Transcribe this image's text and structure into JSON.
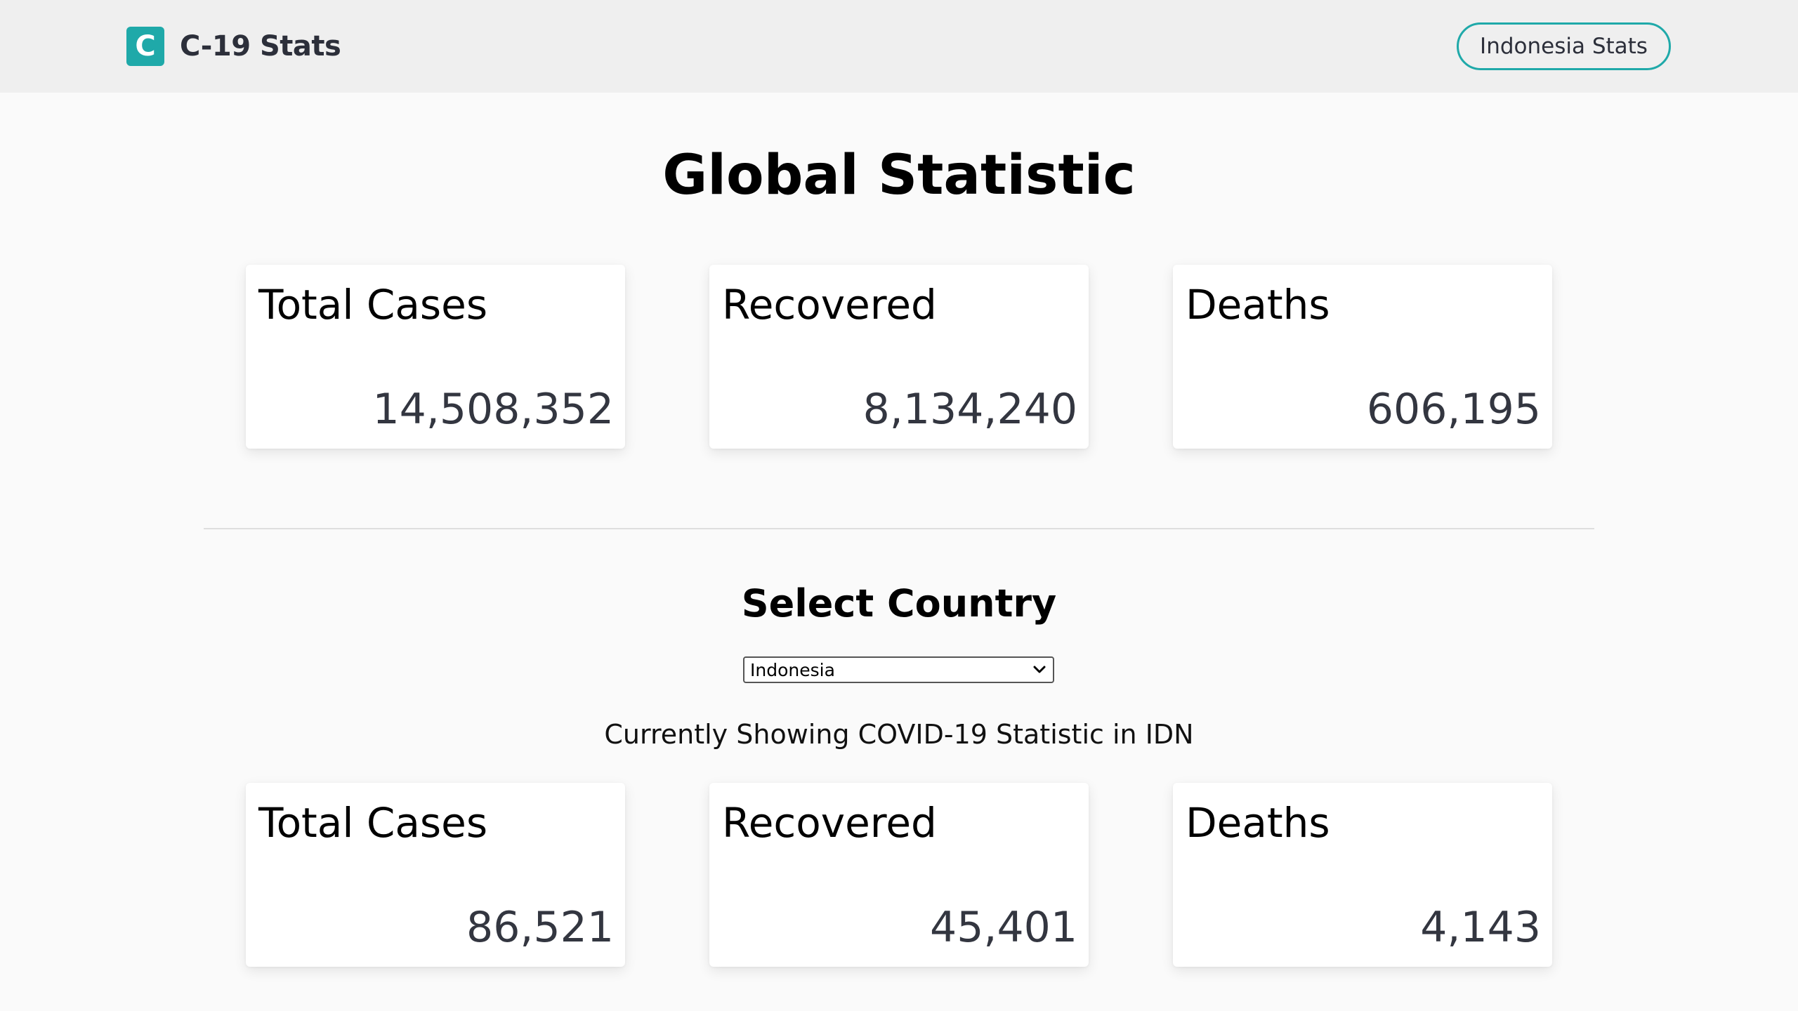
{
  "colors": {
    "accent": "#1fa9a9",
    "header_bg": "#efefef",
    "page_bg": "#fafafa",
    "card_bg": "#ffffff",
    "value_text": "#333640"
  },
  "header": {
    "logo_letter": "C",
    "brand_name": "C-19 Stats",
    "nav_button_label": "Indonesia Stats"
  },
  "global": {
    "title": "Global Statistic",
    "cards": [
      {
        "label": "Total Cases",
        "value": "14,508,352"
      },
      {
        "label": "Recovered",
        "value": "8,134,240"
      },
      {
        "label": "Deaths",
        "value": "606,195"
      }
    ]
  },
  "country": {
    "title": "Select Country",
    "selected": "Indonesia",
    "select_icon": "chevron-down-icon",
    "showing_text": "Currently Showing COVID-19 Statistic in IDN",
    "cards": [
      {
        "label": "Total Cases",
        "value": "86,521"
      },
      {
        "label": "Recovered",
        "value": "45,401"
      },
      {
        "label": "Deaths",
        "value": "4,143"
      }
    ]
  }
}
